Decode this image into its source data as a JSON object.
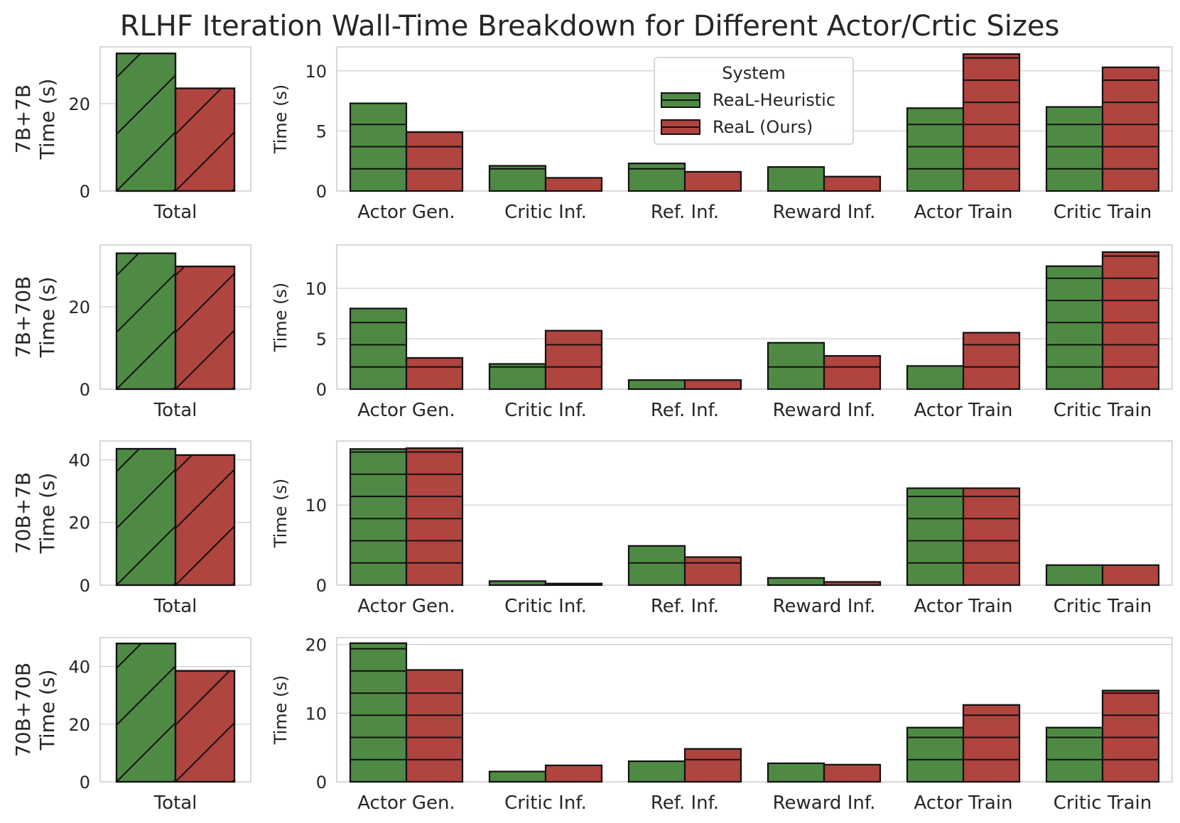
{
  "title": "RLHF Iteration Wall-Time Breakdown for Different Actor/Crtic Sizes",
  "colors": {
    "heuristic": "#4f8a44",
    "ours": "#b0443f"
  },
  "legend": {
    "title": "System",
    "items": [
      {
        "label": "ReaL-Heuristic",
        "color": "#4f8a44"
      },
      {
        "label": "ReaL (Ours)",
        "color": "#b0443f"
      }
    ],
    "placement": "upper center of first breakdown panel"
  },
  "chart_data": [
    {
      "type": "bar",
      "row_label": "7B+7B",
      "total": {
        "categories": [
          "Total"
        ],
        "ylabel": "Time (s)",
        "ylim": [
          0,
          33
        ],
        "ticks": [
          0,
          20
        ],
        "series": [
          {
            "name": "ReaL-Heuristic",
            "values": [
              31.5
            ]
          },
          {
            "name": "ReaL (Ours)",
            "values": [
              23.5
            ]
          }
        ]
      },
      "breakdown": {
        "categories": [
          "Actor Gen.",
          "Critic Inf.",
          "Ref. Inf.",
          "Reward Inf.",
          "Actor Train",
          "Critic Train"
        ],
        "ylabel": "Time (s)",
        "ylim": [
          0,
          12
        ],
        "ticks": [
          0,
          5,
          10
        ],
        "series": [
          {
            "name": "ReaL-Heuristic",
            "values": [
              7.3,
              2.1,
              2.3,
              2.0,
              6.9,
              7.0
            ]
          },
          {
            "name": "ReaL (Ours)",
            "values": [
              4.9,
              1.1,
              1.6,
              1.2,
              11.4,
              10.3
            ]
          }
        ]
      }
    },
    {
      "type": "bar",
      "row_label": "7B+70B",
      "total": {
        "categories": [
          "Total"
        ],
        "ylabel": "Time (s)",
        "ylim": [
          0,
          35
        ],
        "ticks": [
          0,
          20
        ],
        "series": [
          {
            "name": "ReaL-Heuristic",
            "values": [
              33.0
            ]
          },
          {
            "name": "ReaL (Ours)",
            "values": [
              29.8
            ]
          }
        ]
      },
      "breakdown": {
        "categories": [
          "Actor Gen.",
          "Critic Inf.",
          "Ref. Inf.",
          "Reward Inf.",
          "Actor Train",
          "Critic Train"
        ],
        "ylabel": "Time (s)",
        "ylim": [
          0,
          14.3
        ],
        "ticks": [
          0,
          5,
          10
        ],
        "series": [
          {
            "name": "ReaL-Heuristic",
            "values": [
              8.0,
              2.5,
              0.9,
              4.6,
              2.3,
              12.2
            ]
          },
          {
            "name": "ReaL (Ours)",
            "values": [
              3.1,
              5.8,
              0.9,
              3.3,
              5.6,
              13.6
            ]
          }
        ]
      }
    },
    {
      "type": "bar",
      "row_label": "70B+7B",
      "total": {
        "categories": [
          "Total"
        ],
        "ylabel": "Time (s)",
        "ylim": [
          0,
          46
        ],
        "ticks": [
          0,
          20,
          40
        ],
        "series": [
          {
            "name": "ReaL-Heuristic",
            "values": [
              43.5
            ]
          },
          {
            "name": "ReaL (Ours)",
            "values": [
              41.5
            ]
          }
        ]
      },
      "breakdown": {
        "categories": [
          "Actor Gen.",
          "Critic Inf.",
          "Ref. Inf.",
          "Reward Inf.",
          "Actor Train",
          "Critic Train"
        ],
        "ylabel": "Time (s)",
        "ylim": [
          0,
          18
        ],
        "ticks": [
          0,
          10
        ],
        "series": [
          {
            "name": "ReaL-Heuristic",
            "values": [
              17.0,
              0.5,
              4.9,
              0.9,
              12.1,
              2.5
            ]
          },
          {
            "name": "ReaL (Ours)",
            "values": [
              17.1,
              0.2,
              3.5,
              0.4,
              12.1,
              2.5
            ]
          }
        ]
      }
    },
    {
      "type": "bar",
      "row_label": "70B+70B",
      "total": {
        "categories": [
          "Total"
        ],
        "ylabel": "Time (s)",
        "ylim": [
          0,
          50
        ],
        "ticks": [
          0,
          20,
          40
        ],
        "series": [
          {
            "name": "ReaL-Heuristic",
            "values": [
              48.0
            ]
          },
          {
            "name": "ReaL (Ours)",
            "values": [
              38.5
            ]
          }
        ]
      },
      "breakdown": {
        "categories": [
          "Actor Gen.",
          "Critic Inf.",
          "Ref. Inf.",
          "Reward Inf.",
          "Actor Train",
          "Critic Train"
        ],
        "ylabel": "Time (s)",
        "ylim": [
          0,
          21
        ],
        "ticks": [
          0,
          10,
          20
        ],
        "series": [
          {
            "name": "ReaL-Heuristic",
            "values": [
              20.2,
              1.5,
              3.0,
              2.7,
              7.9,
              7.9
            ]
          },
          {
            "name": "ReaL (Ours)",
            "values": [
              16.3,
              2.4,
              4.8,
              2.5,
              11.2,
              13.3
            ]
          }
        ]
      }
    }
  ]
}
